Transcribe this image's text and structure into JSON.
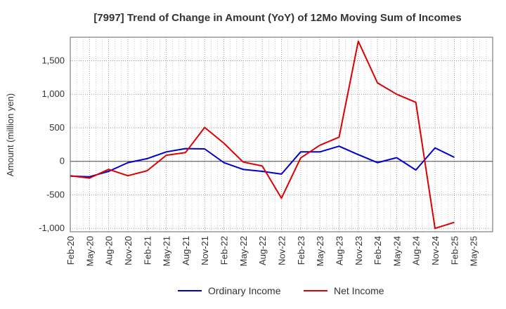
{
  "chart_data": {
    "type": "line",
    "title": "[7997]  Trend of Change in Amount (YoY) of 12Mo Moving Sum of Incomes",
    "xlabel": "",
    "ylabel": "Amount (million yen)",
    "ylim": [
      -1050,
      1850
    ],
    "yticks": [
      -1000,
      -500,
      0,
      500,
      1000,
      1500
    ],
    "ytick_labels": [
      "-1,000",
      "-500",
      "0",
      "500",
      "1,000",
      "1,500"
    ],
    "x_tick_labels": [
      "Feb-20",
      "May-20",
      "Aug-20",
      "Nov-20",
      "Feb-21",
      "May-21",
      "Aug-21",
      "Nov-21",
      "Feb-22",
      "May-22",
      "Aug-22",
      "Nov-22",
      "Feb-23",
      "May-23",
      "Aug-23",
      "Nov-23",
      "Feb-24",
      "May-24",
      "Aug-24",
      "Nov-24",
      "Feb-25",
      "May-25"
    ],
    "grid": true,
    "legend_position": "bottom",
    "series": [
      {
        "name": "Ordinary Income",
        "color": "#0000cc",
        "values": [
          -220,
          -230,
          -150,
          -20,
          40,
          140,
          190,
          185,
          -20,
          -120,
          -150,
          -190,
          140,
          140,
          225,
          100,
          -20,
          55,
          -130,
          200,
          60
        ]
      },
      {
        "name": "Net Income",
        "color": "#dd0000",
        "values": [
          -215,
          -250,
          -120,
          -215,
          -140,
          90,
          130,
          505,
          270,
          -10,
          -70,
          -550,
          50,
          240,
          360,
          1790,
          1170,
          1000,
          880,
          -1000,
          -910
        ]
      }
    ]
  }
}
